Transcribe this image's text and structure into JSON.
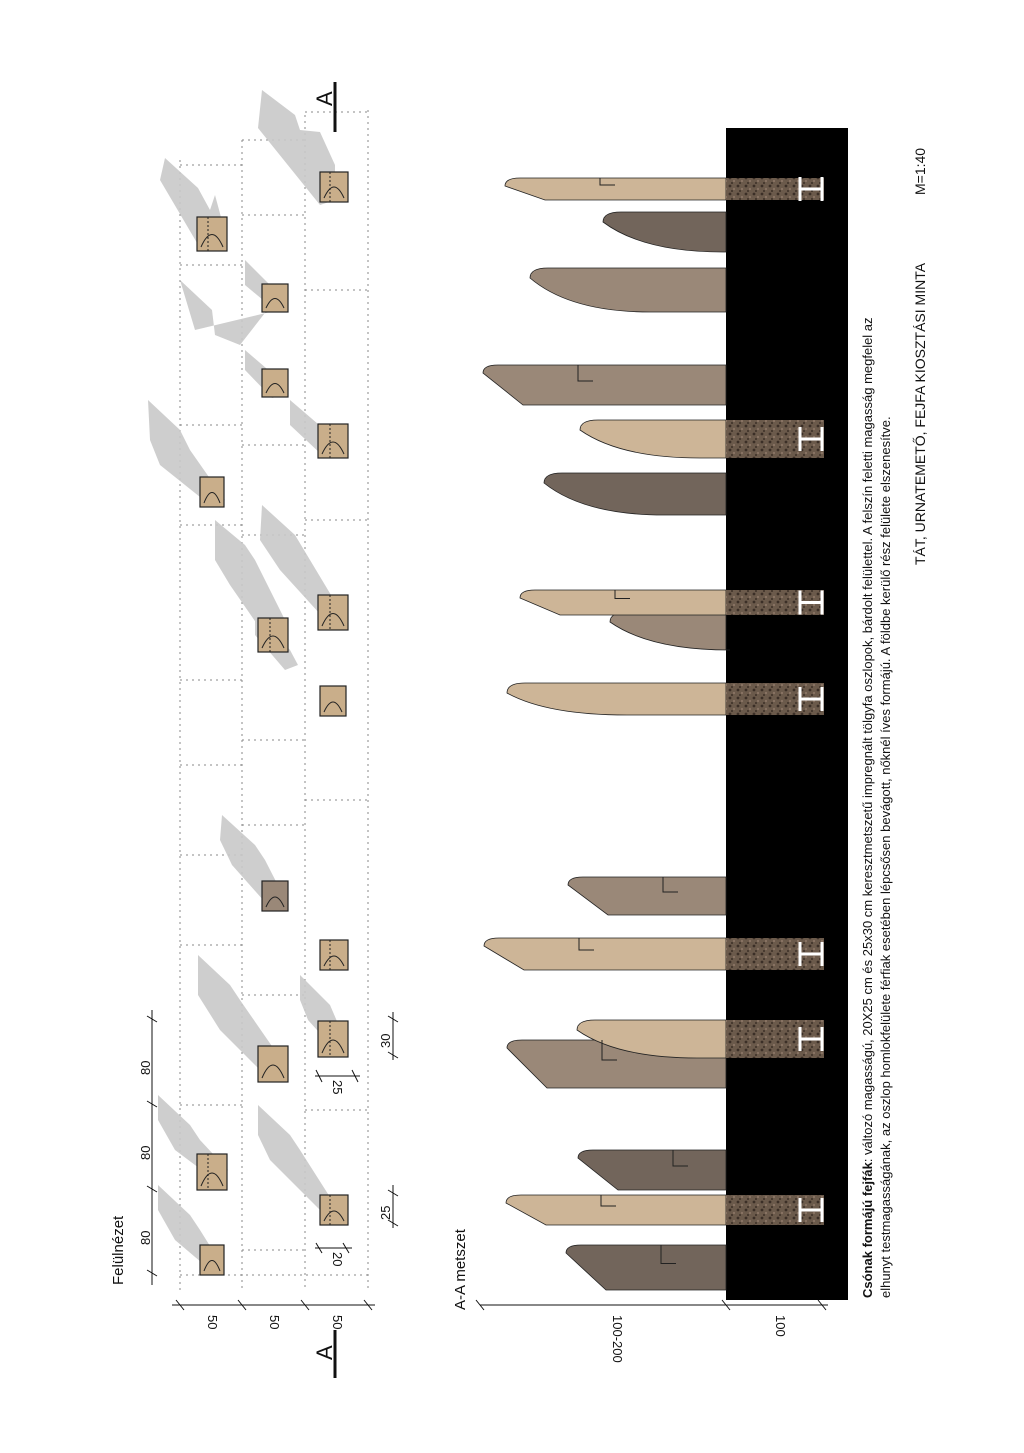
{
  "plan_view": {
    "title": "Felülnézet",
    "section_marker_letter": "A",
    "row_dimensions": [
      "50",
      "50",
      "50"
    ],
    "column_dimensions": [
      "80",
      "80",
      "80"
    ],
    "post_dimensions": [
      "20",
      "25",
      "25",
      "30"
    ]
  },
  "section_view": {
    "title": "A-A metszet",
    "height_dimension": "100-200",
    "depth_dimension": "100"
  },
  "caption": {
    "bold_lead": "Csónak formájú fejfák",
    "line1": ": változó magasságú, 20X25 cm és 25x30 cm keresztmetszetű impregnált tölgyfa oszlopok, bárdolt felülettel.  A felszín feletti magasság megfelel az",
    "line2": "elhunyt testmagasságának, az oszlop homlokfelülete férfiak esetében lépcsősen bevágott, nőknél íves formájú.  A földbe kerülő rész felülete elszenesítve."
  },
  "footer": {
    "title": "TÁT, URNATEMETŐ, FEJFA KIOSZTÁSI MINTA",
    "scale": "M=1:40"
  },
  "colors": {
    "light_wood": "#cdb597",
    "mid_wood": "#9a8878",
    "dark_wood": "#72655b",
    "shadow": "#c9c9c9",
    "ground": "#000000",
    "charred": "#5a4a3e",
    "post_fill": "#c9ae8a"
  }
}
